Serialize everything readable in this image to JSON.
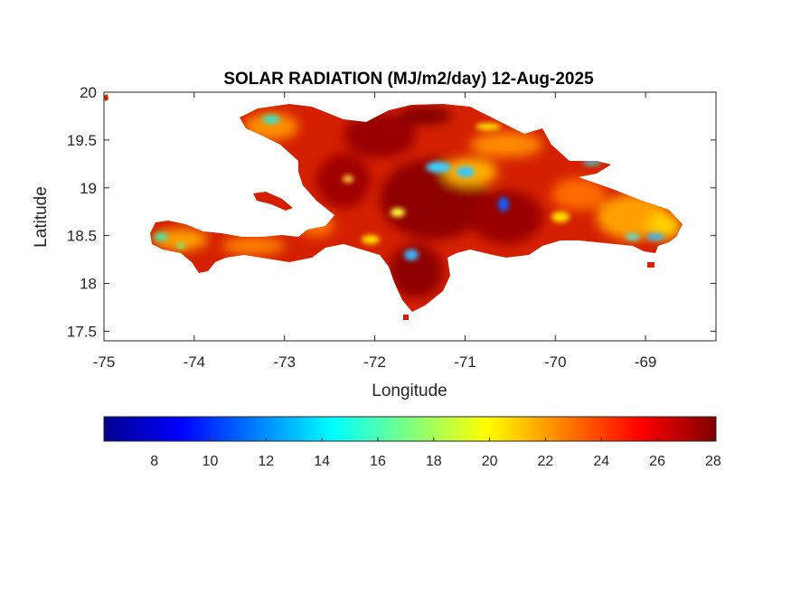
{
  "map": {
    "title": "SOLAR RADIATION (MJ/m2/day) 12-Aug-2025",
    "xlabel": "Longitude",
    "ylabel": "Latitude",
    "xlim": [
      -75,
      -68.22
    ],
    "ylim": [
      17.4,
      20.0
    ],
    "xticks": [
      -75,
      -74,
      -73,
      -72,
      -71,
      -70,
      -69
    ],
    "yticks": [
      17.5,
      18,
      18.5,
      19,
      19.5,
      20
    ],
    "xtick_labels": [
      "-75",
      "-74",
      "-73",
      "-72",
      "-71",
      "-70",
      "-69"
    ],
    "ytick_labels": [
      "17.5",
      "18",
      "18.5",
      "19",
      "19.5",
      "20"
    ],
    "region": "Hispaniola (Haiti and Dominican Republic)",
    "colormap": "jet",
    "colors": {
      "ocean": "#ffffff",
      "land_dominant": "#d42000",
      "land_high": "#8f0000",
      "land_mid": "#ff9a00",
      "land_low": "#3ab8ff",
      "axes_line": "#262626"
    }
  },
  "colorbar": {
    "min": 6.2,
    "max": 28.1,
    "ticks": [
      8,
      10,
      12,
      14,
      16,
      18,
      20,
      22,
      24,
      26,
      28
    ],
    "tick_labels": [
      "8",
      "10",
      "12",
      "14",
      "16",
      "18",
      "20",
      "22",
      "24",
      "26",
      "28"
    ],
    "stops": [
      "#00008f",
      "#0000ff",
      "#00ffff",
      "#ffff00",
      "#ff0000",
      "#800000"
    ]
  }
}
